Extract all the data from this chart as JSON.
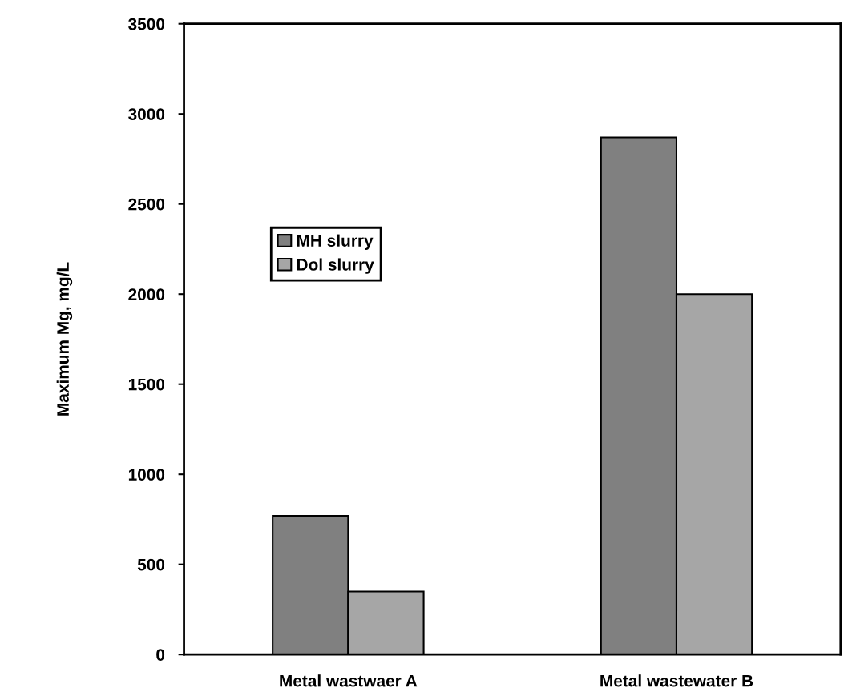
{
  "chart_data": {
    "type": "bar",
    "ylabel": "Maximum Mg, mg/L",
    "categories": [
      "Metal wastwaer A",
      "Metal wastewater B"
    ],
    "series": [
      {
        "name": "MH slurry",
        "color": "#808080",
        "values": [
          770,
          2870
        ]
      },
      {
        "name": "Dol slurry",
        "color": "#a6a6a6",
        "values": [
          350,
          2000
        ]
      }
    ],
    "ylim": [
      0,
      3500
    ],
    "yticks": [
      0,
      500,
      1000,
      1500,
      2000,
      2500,
      3000,
      3500
    ],
    "grid": false,
    "legend": "top left"
  }
}
